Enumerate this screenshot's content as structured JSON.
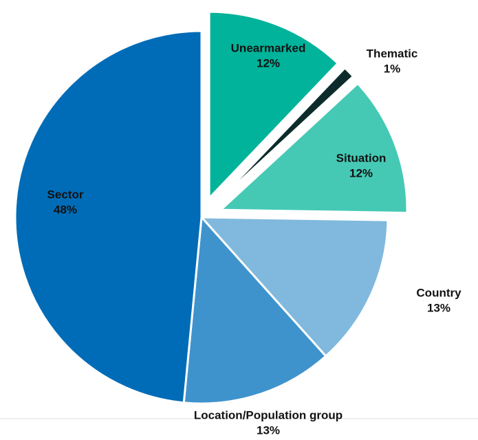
{
  "chart_data": {
    "type": "pie",
    "categories": [
      "Unearmarked",
      "Thematic",
      "Situation",
      "Country",
      "Location/Population group",
      "Sector"
    ],
    "values": [
      12,
      1,
      12,
      13,
      13,
      48
    ],
    "value_labels": [
      "12%",
      "1%",
      "12%",
      "13%",
      "13%",
      "48%"
    ],
    "colors": [
      "#00b39a",
      "#0d2b2b",
      "#45c9b5",
      "#80b9dd",
      "#3f93cd",
      "#006cb7"
    ],
    "exploded": [
      true,
      true,
      true,
      false,
      false,
      false
    ]
  }
}
